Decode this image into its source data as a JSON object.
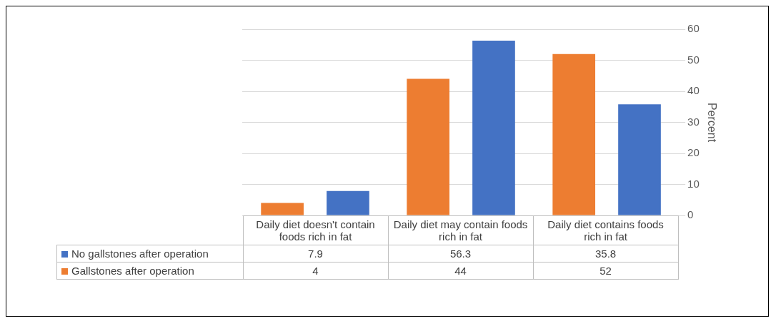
{
  "chart_data": {
    "type": "bar",
    "categories": [
      "Daily diet doesn't contain foods rich in fat",
      "Daily diet may contain foods rich in fat",
      "Daily diet contains foods rich in fat"
    ],
    "series": [
      {
        "name": "Gallstones after operation",
        "color": "#ed7d31",
        "values": [
          4,
          44,
          52
        ]
      },
      {
        "name": "No gallstones after operation",
        "color": "#4472c4",
        "values": [
          7.9,
          56.3,
          35.8
        ]
      }
    ],
    "ylabel": "Percent",
    "ylim": [
      0,
      60
    ],
    "yticks": [
      0,
      10,
      20,
      30,
      40,
      50,
      60
    ],
    "grid": "y",
    "legend": "bottom",
    "data_labels": true
  }
}
